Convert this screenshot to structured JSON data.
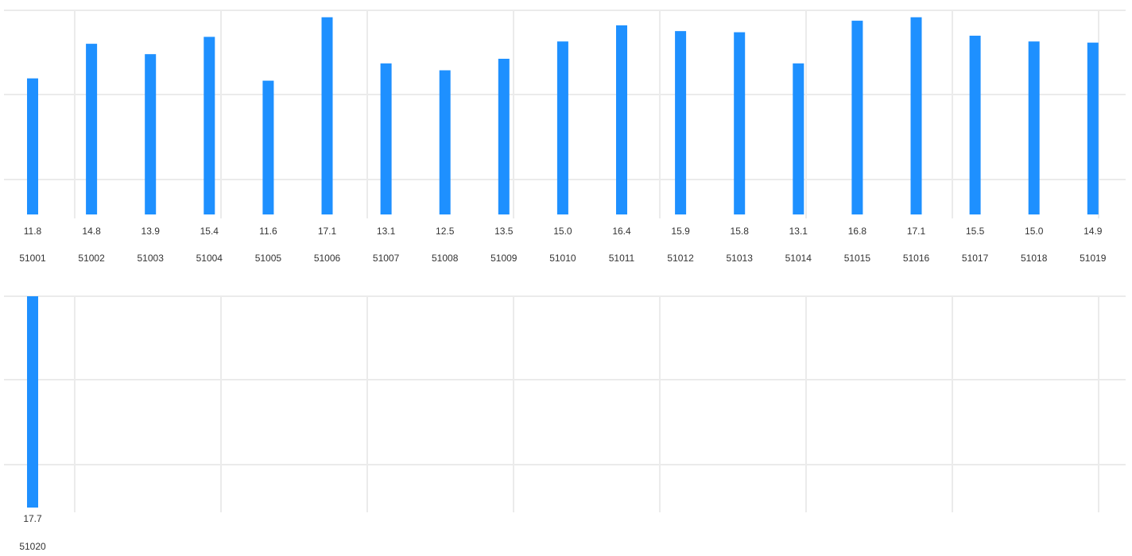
{
  "chart_data": {
    "type": "bar",
    "title": "",
    "xlabel": "",
    "ylabel": "",
    "grid": true,
    "categories": [
      "51001",
      "51002",
      "51003",
      "51004",
      "51005",
      "51006",
      "51007",
      "51008",
      "51009",
      "51010",
      "51011",
      "51012",
      "51013",
      "51014",
      "51015",
      "51016",
      "51017",
      "51018",
      "51019",
      "51020"
    ],
    "values": [
      11.8,
      14.8,
      13.9,
      15.4,
      11.6,
      17.1,
      13.1,
      12.5,
      13.5,
      15.0,
      16.4,
      15.9,
      15.8,
      13.1,
      16.8,
      17.1,
      15.5,
      15.0,
      14.9,
      17.7
    ],
    "value_labels": [
      "11.8",
      "14.8",
      "13.9",
      "15.4",
      "11.6",
      "17.1",
      "13.1",
      "12.5",
      "13.5",
      "15.0",
      "16.4",
      "15.9",
      "15.8",
      "13.1",
      "16.8",
      "17.1",
      "15.5",
      "15.0",
      "14.9",
      "17.7"
    ],
    "ylim": [
      0,
      17.7
    ],
    "colors": {
      "bar": "#1e90ff",
      "grid": "#ebebeb",
      "text": "#333333"
    }
  }
}
